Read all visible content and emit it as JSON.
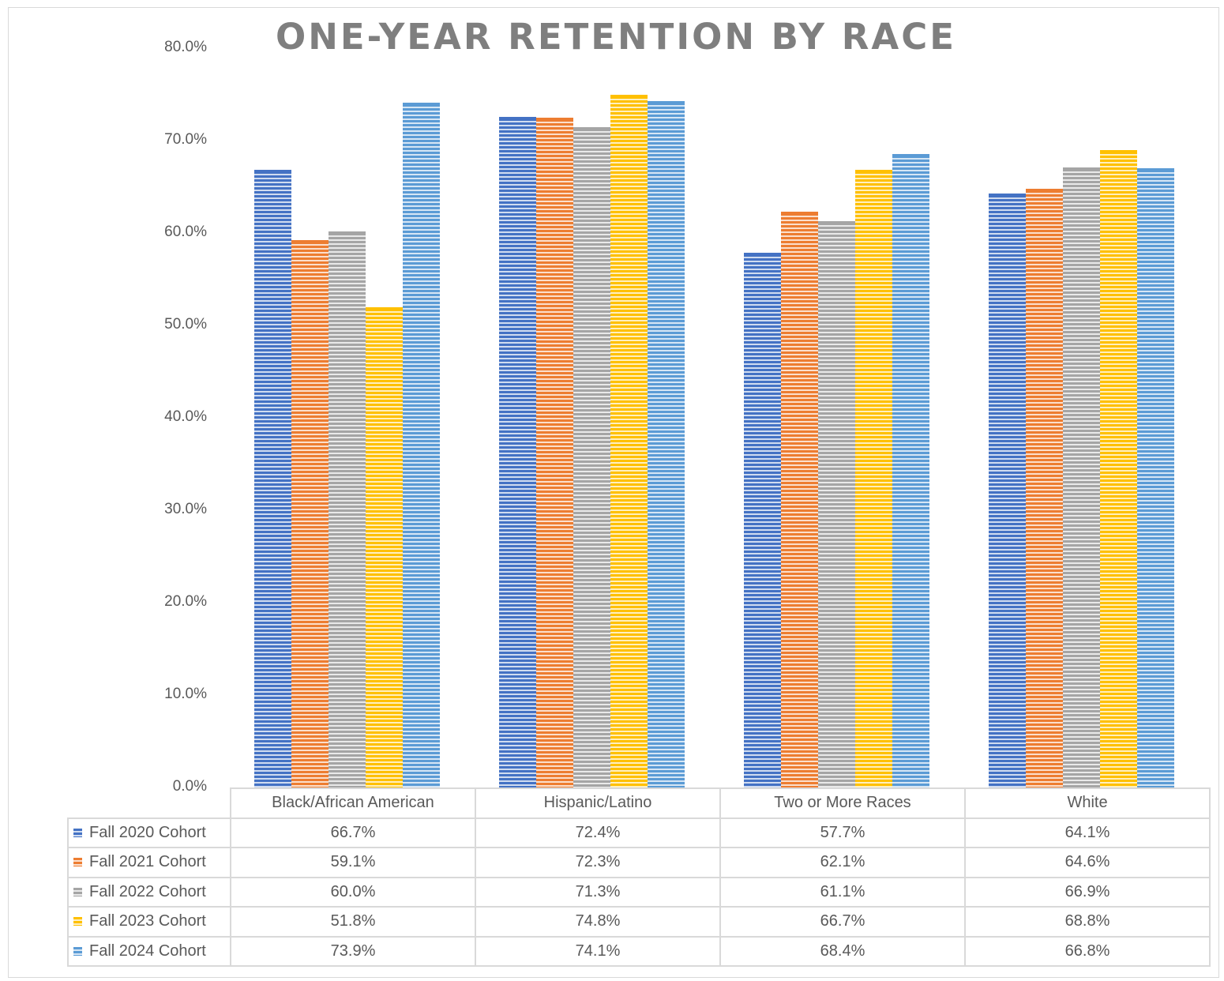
{
  "chart_data": {
    "type": "bar",
    "title": "ONE-YEAR RETENTION BY RACE",
    "categories": [
      "Black/African American",
      "Hispanic/Latino",
      "Two or More Races",
      "White"
    ],
    "series": [
      {
        "name": "Fall 2020 Cohort",
        "color": "#4472c4",
        "values": [
          66.7,
          72.4,
          57.7,
          64.1
        ],
        "labels": [
          "66.7%",
          "72.4%",
          "57.7%",
          "64.1%"
        ]
      },
      {
        "name": "Fall 2021 Cohort",
        "color": "#ed7d31",
        "values": [
          59.1,
          72.3,
          62.1,
          64.6
        ],
        "labels": [
          "59.1%",
          "72.3%",
          "62.1%",
          "64.6%"
        ]
      },
      {
        "name": "Fall 2022 Cohort",
        "color": "#a5a5a5",
        "values": [
          60.0,
          71.3,
          61.1,
          66.9
        ],
        "labels": [
          "60.0%",
          "71.3%",
          "61.1%",
          "66.9%"
        ]
      },
      {
        "name": "Fall 2023 Cohort",
        "color": "#ffc000",
        "values": [
          51.8,
          74.8,
          66.7,
          68.8
        ],
        "labels": [
          "51.8%",
          "74.8%",
          "66.7%",
          "68.8%"
        ]
      },
      {
        "name": "Fall 2024 Cohort",
        "color": "#5b9bd5",
        "values": [
          73.9,
          74.1,
          68.4,
          66.8
        ],
        "labels": [
          "73.9%",
          "74.1%",
          "68.4%",
          "66.8%"
        ]
      }
    ],
    "yticks": [
      "0.0%",
      "10.0%",
      "20.0%",
      "30.0%",
      "40.0%",
      "50.0%",
      "60.0%",
      "70.0%",
      "80.0%"
    ],
    "ylim": [
      0,
      80
    ],
    "grid": false,
    "legend": "data-table-bottom",
    "pattern": "horizontal-stripes"
  }
}
